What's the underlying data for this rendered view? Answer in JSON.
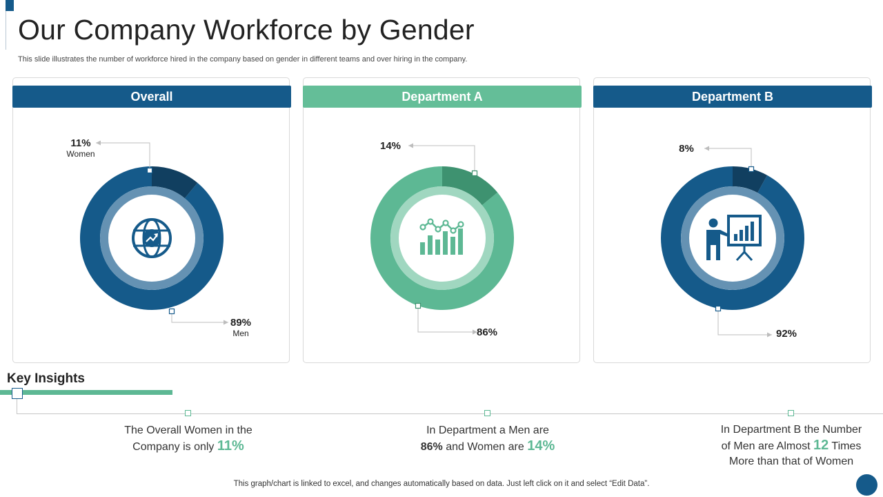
{
  "page": {
    "title": "Our Company Workforce by Gender",
    "subtitle": "This slide illustrates the number of workforce hired in the company based on gender in different teams and over hiring in the company.",
    "footer": "This graph/chart is linked to excel,  and changes automatically based on data. Just left click on it and select “Edit Data”."
  },
  "colors": {
    "navy": "#155a8a",
    "navy_dark": "#113f60",
    "navy_ring": "#4a7fa6",
    "green": "#5db894",
    "green_dark": "#3e9270",
    "green_ring": "#8fd0b5",
    "green_header": "#64be98"
  },
  "chart_data": [
    {
      "type": "pie",
      "variant": "donut",
      "title": "Overall",
      "icon": "globe-trend-icon",
      "categories": [
        "Women",
        "Men"
      ],
      "values": [
        11,
        89
      ],
      "labels": [
        "11%",
        "89%"
      ],
      "sublabels": [
        "Women",
        "Men"
      ]
    },
    {
      "type": "pie",
      "variant": "donut",
      "title": "Department A",
      "icon": "bar-chart-trend-icon",
      "categories": [
        "Women",
        "Men"
      ],
      "values": [
        14,
        86
      ],
      "labels": [
        "14%",
        "86%"
      ],
      "sublabels": [
        "",
        ""
      ]
    },
    {
      "type": "pie",
      "variant": "donut",
      "title": "Department B",
      "icon": "presenter-board-icon",
      "categories": [
        "Women",
        "Men"
      ],
      "values": [
        8,
        92
      ],
      "labels": [
        "8%",
        "92%"
      ],
      "sublabels": [
        "",
        ""
      ]
    }
  ],
  "insights": {
    "title": "Key Insights",
    "items": [
      {
        "line1": "The Overall Women in the",
        "line2_pre": "Company is only",
        "hl": "11%",
        "line2_post": "",
        "line3": ""
      },
      {
        "line1": "In Department a Men are",
        "line2_bold": "86%",
        "line2_pre": "and Women are",
        "hl": "14%",
        "line2_post": "",
        "line3": ""
      },
      {
        "line1": "In Department B the Number",
        "line2_pre": "of Men are Almost",
        "hl": "12",
        "line2_post": "Times",
        "line3": "More than that of Women"
      }
    ]
  }
}
